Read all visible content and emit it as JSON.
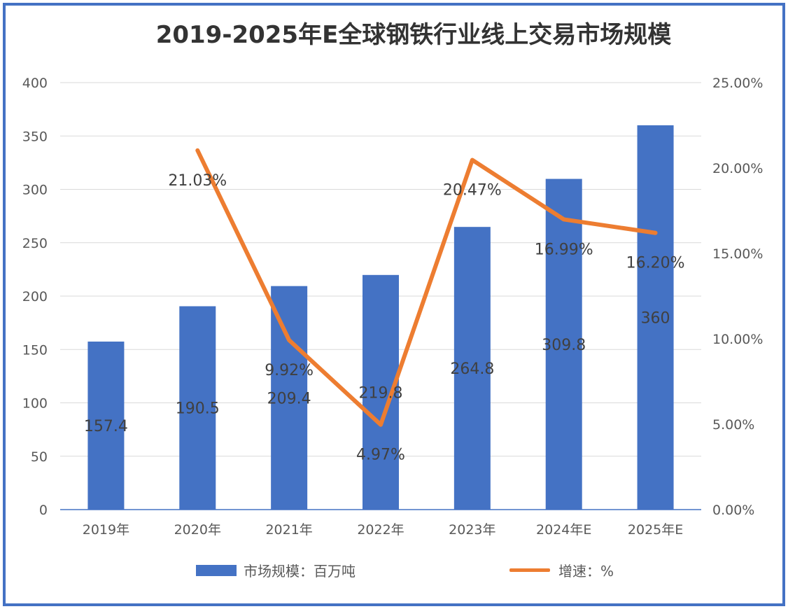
{
  "title": "2019-2025年E全球钢铁行业线上交易市场规模",
  "colors": {
    "bar": "#4472C4",
    "line": "#ED7D31",
    "grid": "#D9D9D9",
    "frame": "#4472C4"
  },
  "legend": {
    "bar_label": "市场规模：百万吨",
    "line_label": "增速：%"
  },
  "chart_data": {
    "type": "bar",
    "categories": [
      "2019年",
      "2020年",
      "2021年",
      "2022年",
      "2023年",
      "2024年E",
      "2025年E"
    ],
    "series": [
      {
        "name": "市场规模：百万吨",
        "type": "bar",
        "axis": "left",
        "values": [
          157.4,
          190.5,
          209.4,
          219.8,
          264.8,
          309.8,
          360
        ],
        "labels": [
          "157.4",
          "190.5",
          "209.4",
          "219.8",
          "264.8",
          "309.8",
          "360"
        ]
      },
      {
        "name": "增速：%",
        "type": "line",
        "axis": "right",
        "values": [
          null,
          21.03,
          9.92,
          4.97,
          20.47,
          16.99,
          16.2
        ],
        "labels": [
          "",
          "21.03%",
          "9.92%",
          "4.97%",
          "20.47%",
          "16.99%",
          "16.20%"
        ]
      }
    ],
    "y_left": {
      "min": 0,
      "max": 400,
      "ticks": [
        0,
        50,
        100,
        150,
        200,
        250,
        300,
        350,
        400
      ],
      "tick_labels": [
        "0",
        "50",
        "100",
        "150",
        "200",
        "250",
        "300",
        "350",
        "400"
      ]
    },
    "y_right": {
      "min": 0,
      "max": 25,
      "ticks": [
        0,
        5,
        10,
        15,
        20,
        25
      ],
      "tick_labels": [
        "0.00%",
        "5.00%",
        "10.00%",
        "15.00%",
        "20.00%",
        "25.00%"
      ]
    },
    "grid": true,
    "legend_position": "bottom"
  }
}
